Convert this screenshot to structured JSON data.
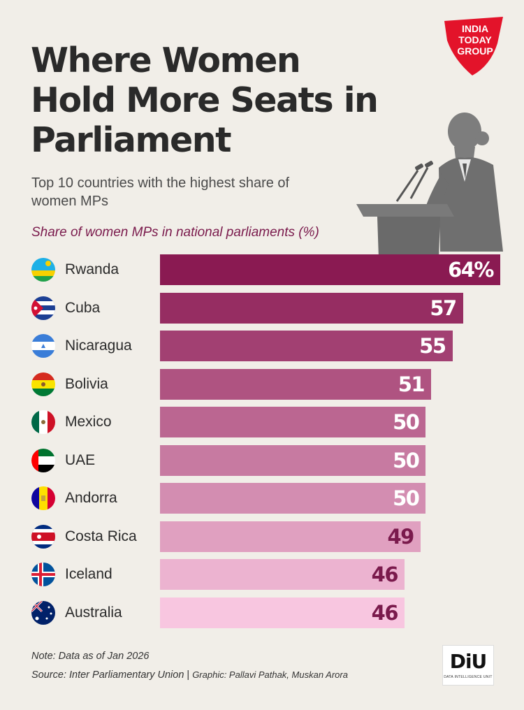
{
  "header": {
    "title": "Where Women Hold More Seats in Parliament",
    "subtitle": "Top 10 countries with the highest share of women MPs",
    "logo_lines": [
      "INDIA",
      "TODAY",
      "GROUP"
    ]
  },
  "chart_data": {
    "type": "bar",
    "orientation": "horizontal",
    "title": "Share of women MPs in national parliaments (%)",
    "categories": [
      "Rwanda",
      "Cuba",
      "Nicaragua",
      "Bolivia",
      "Mexico",
      "UAE",
      "Andorra",
      "Costa Rica",
      "Iceland",
      "Australia"
    ],
    "values": [
      64,
      57,
      55,
      51,
      50,
      50,
      50,
      49,
      46,
      46
    ],
    "value_labels": [
      "64%",
      "57",
      "55",
      "51",
      "50",
      "50",
      "50",
      "49",
      "46",
      "46"
    ],
    "unit": "%",
    "xlim": [
      0,
      64
    ],
    "colors": {
      "top": "#8a1a52",
      "bottom": "#f8c6e0",
      "label_light": "#ffffff",
      "label_dark": "#7a1a4c"
    }
  },
  "footer": {
    "note": "Note: Data as of Jan 2026",
    "source": "Source: Inter Parliamentary Union",
    "separator": "|",
    "graphic": "Graphic: Pallavi Pathak, Muskan Arora",
    "brand": "DiU",
    "brand_sub": "DATA INTELLIGENCE UNIT"
  },
  "colors": {
    "background": "#f1eee8",
    "logo_red": "#e3132a",
    "accent": "#7a1a4c"
  }
}
